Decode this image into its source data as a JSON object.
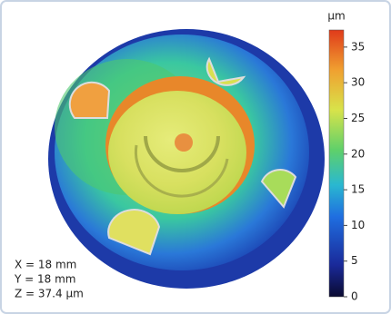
{
  "image": {
    "colorbar": {
      "unit": "µm",
      "lim": [
        0,
        37.4
      ],
      "ticks": [
        0,
        5,
        10,
        15,
        20,
        25,
        30,
        35
      ]
    },
    "annotations": [
      "X = 18 mm",
      "Y = 18 mm",
      "Z = 37.4 µm"
    ]
  }
}
